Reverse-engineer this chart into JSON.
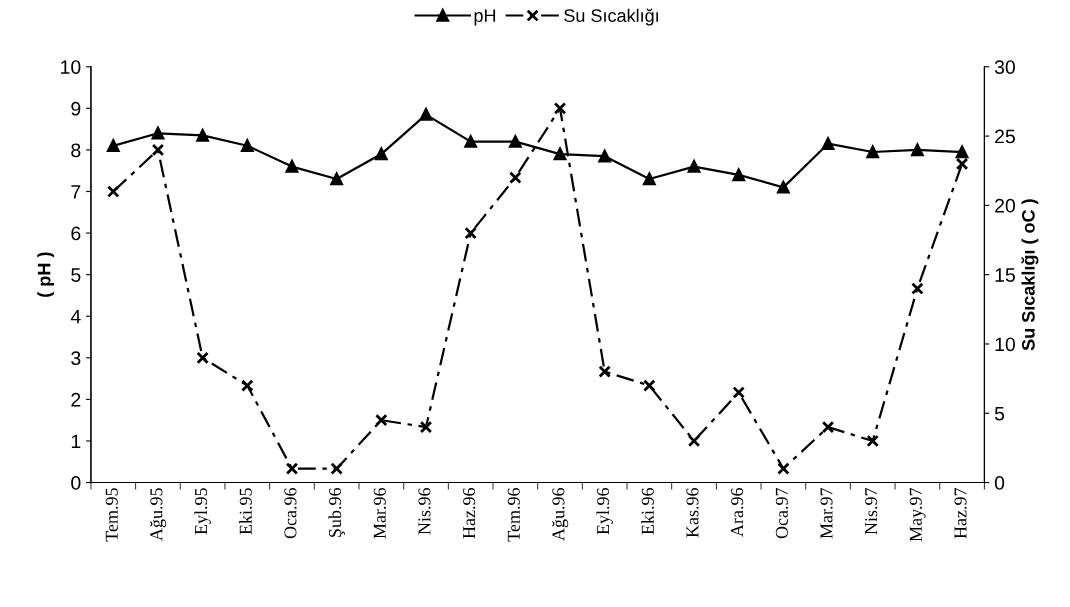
{
  "chart_data": {
    "type": "line",
    "categories": [
      "Tem.95",
      "Ağu.95",
      "Eyl.95",
      "Eki.95",
      "Oca.96",
      "Şub.96",
      "Mar.96",
      "Nis.96",
      "Haz.96",
      "Tem.96",
      "Ağu.96",
      "Eyl.96",
      "Eki.96",
      "Kas.96",
      "Ara.96",
      "Oca.97",
      "Mar.97",
      "Nis.97",
      "May.97",
      "Haz.97"
    ],
    "series": [
      {
        "name": "pH",
        "color": "#000000",
        "marker": "triangle",
        "line_style": "solid",
        "values": [
          8.1,
          8.4,
          8.35,
          8.1,
          7.6,
          7.3,
          7.9,
          8.85,
          8.2,
          8.2,
          7.9,
          7.85,
          7.3,
          7.6,
          7.4,
          7.1,
          8.15,
          7.95,
          8.0,
          7.95
        ]
      },
      {
        "name": "Su Sıcaklığı",
        "color": "#000000",
        "marker": "cross",
        "line_style": "dashed",
        "axis": "y2",
        "values": [
          21,
          24,
          9,
          7,
          1,
          1,
          4.5,
          4,
          18,
          22,
          27,
          8,
          7,
          3,
          6.5,
          1,
          4,
          3,
          14,
          23
        ]
      }
    ],
    "ylabel": "( pH )",
    "y2label": "Su Sıcaklığı ( oC )",
    "ylim": [
      0,
      10
    ],
    "yticks": [
      0,
      1,
      2,
      3,
      4,
      5,
      6,
      7,
      8,
      9,
      10
    ],
    "y2lim": [
      0,
      30
    ],
    "y2ticks": [
      0,
      5,
      10,
      15,
      20,
      25,
      30
    ],
    "grid": false,
    "legend": "top"
  }
}
